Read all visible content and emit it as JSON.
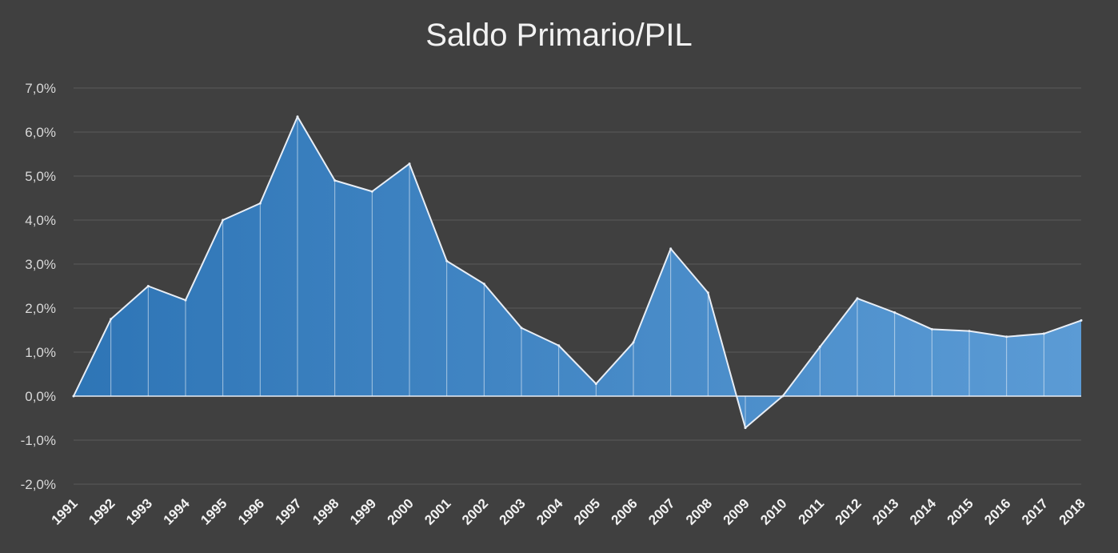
{
  "chart_data": {
    "type": "area",
    "title": "Saldo Primario/PIL",
    "xlabel": "",
    "ylabel": "",
    "x": [
      "1991",
      "1992",
      "1993",
      "1994",
      "1995",
      "1996",
      "1997",
      "1998",
      "1999",
      "2000",
      "2001",
      "2002",
      "2003",
      "2004",
      "2005",
      "2006",
      "2007",
      "2008",
      "2009",
      "2010",
      "2011",
      "2012",
      "2013",
      "2014",
      "2015",
      "2016",
      "2017",
      "2018"
    ],
    "series": [
      {
        "values": [
          0.0,
          1.75,
          2.5,
          2.18,
          4.0,
          4.38,
          6.35,
          4.9,
          4.65,
          5.28,
          3.07,
          2.55,
          1.55,
          1.15,
          0.28,
          1.22,
          3.35,
          2.35,
          -0.72,
          0.0,
          1.12,
          2.22,
          1.9,
          1.52,
          1.48,
          1.35,
          1.42,
          1.72
        ]
      }
    ],
    "ylim": [
      -2.0,
      7.0
    ],
    "yticks": [
      -2,
      -1,
      0,
      1,
      2,
      3,
      4,
      5,
      6,
      7
    ],
    "ytick_labels": [
      "-2,0%",
      "-1,0%",
      "0,0%",
      "1,0%",
      "2,0%",
      "3,0%",
      "4,0%",
      "5,0%",
      "6,0%",
      "7,0%"
    ],
    "grid": true,
    "legend": "none",
    "colors": {
      "background": "#404040",
      "fill_start": "#2e75b6",
      "fill_end": "#5b9bd5",
      "line": "#e8eef6",
      "grid": "#5a5a5a",
      "text": "#d9d9d9"
    }
  }
}
